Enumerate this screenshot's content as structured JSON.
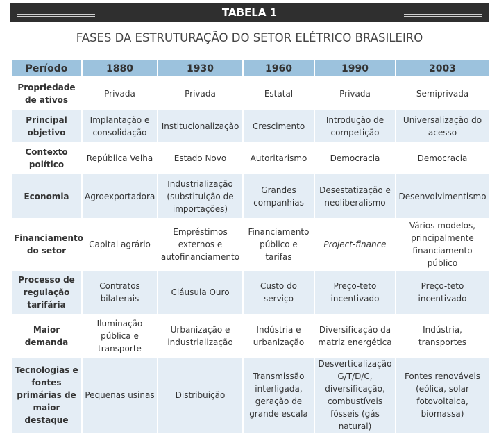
{
  "header": {
    "label": "TABELA 1",
    "title": "FASES DA ESTRUTURAÇÃO DO SETOR ELÉTRICO BRASILEIRO"
  },
  "table": {
    "columns": [
      "Período",
      "1880",
      "1930",
      "1960",
      "1990",
      "2003"
    ],
    "rows": [
      [
        "Propriedade de ativos",
        "Privada",
        "Privada",
        "Estatal",
        "Privada",
        "Semiprivada"
      ],
      [
        "Principal objetivo",
        "Implantação e consolidação",
        "Institucionalização",
        "Crescimento",
        "Introdução de competição",
        "Universalização do acesso"
      ],
      [
        "Contexto político",
        "República Velha",
        "Estado Novo",
        "Autoritarismo",
        "Democracia",
        "Democracia"
      ],
      [
        "Economia",
        "Agroexportadora",
        "Industrialização (substituição de importações)",
        "Grandes companhias",
        "Desestatização e neoliberalismo",
        "Desenvolvimentismo"
      ],
      [
        "Financiamento do setor",
        "Capital agrário",
        "Empréstimos externos e autofinanciamento",
        "Financiamento público e tarifas",
        "Project-finance",
        "Vários modelos, principalmente financiamento público"
      ],
      [
        "Processo de regulação tarifária",
        "Contratos bilaterais",
        "Cláusula Ouro",
        "Custo do serviço",
        "Preço-teto incentivado",
        "Preço-teto incentivado"
      ],
      [
        "Maior demanda",
        "Iluminação pública e transporte",
        "Urbanização e industrialização",
        "Indústria e urbanização",
        "Diversificação da matriz energética",
        "Indústria, transportes"
      ],
      [
        "Tecnologias e fontes primárias de maior destaque",
        "Pequenas usinas",
        "Distribuição",
        "Transmissão interligada, geração de grande escala",
        "Desverticalização G/T/D/C, diversificação, combustíveis fósseis (gás natural)",
        "Fontes renováveis (eólica, solar fotovoltaica, biomassa)"
      ]
    ]
  }
}
